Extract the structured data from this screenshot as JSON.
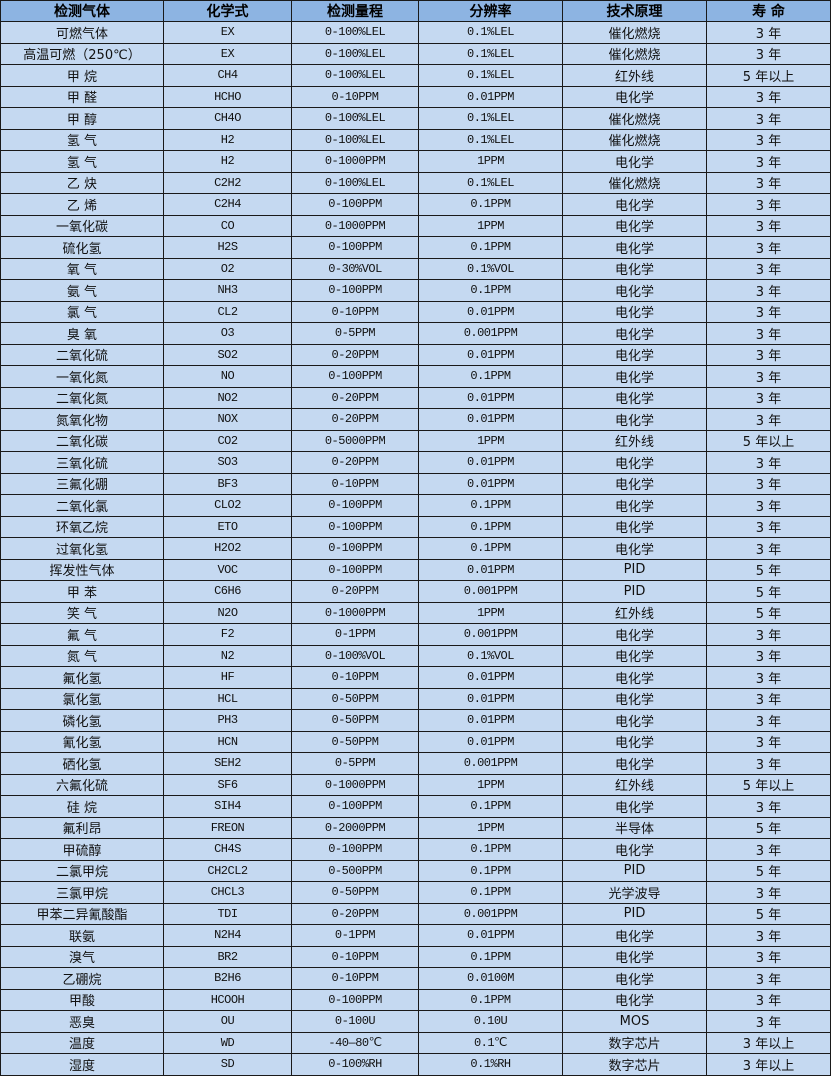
{
  "header_bg": "#8db4e2",
  "row_bg": "#c5d9f1",
  "columns": [
    "检测气体",
    "化学式",
    "检测量程",
    "分辨率",
    "技术原理",
    "寿 命"
  ],
  "rows": [
    [
      "可燃气体",
      "EX",
      "0-100%LEL",
      "0.1%LEL",
      "催化燃烧",
      "3 年"
    ],
    [
      "高温可燃（250℃）",
      "EX",
      "0-100%LEL",
      "0.1%LEL",
      "催化燃烧",
      "3 年"
    ],
    [
      "甲 烷",
      "CH4",
      "0-100%LEL",
      "0.1%LEL",
      "红外线",
      "5 年以上"
    ],
    [
      "甲 醛",
      "HCHO",
      "0-10PPM",
      "0.01PPM",
      "电化学",
      "3 年"
    ],
    [
      "甲 醇",
      "CH4O",
      "0-100%LEL",
      "0.1%LEL",
      "催化燃烧",
      "3 年"
    ],
    [
      "氢 气",
      "H2",
      "0-100%LEL",
      "0.1%LEL",
      "催化燃烧",
      "3 年"
    ],
    [
      "氢 气",
      "H2",
      "0-1000PPM",
      "1PPM",
      "电化学",
      "3 年"
    ],
    [
      "乙 炔",
      "C2H2",
      "0-100%LEL",
      "0.1%LEL",
      "催化燃烧",
      "3 年"
    ],
    [
      "乙 烯",
      "C2H4",
      "0-100PPM",
      "0.1PPM",
      "电化学",
      "3 年"
    ],
    [
      "一氧化碳",
      "CO",
      "0-1000PPM",
      "1PPM",
      "电化学",
      "3 年"
    ],
    [
      "硫化氢",
      "H2S",
      "0-100PPM",
      "0.1PPM",
      "电化学",
      "3 年"
    ],
    [
      "氧 气",
      "O2",
      "0-30%VOL",
      "0.1%VOL",
      "电化学",
      "3 年"
    ],
    [
      "氨 气",
      "NH3",
      "0-100PPM",
      "0.1PPM",
      "电化学",
      "3 年"
    ],
    [
      "氯 气",
      "CL2",
      "0-10PPM",
      "0.01PPM",
      "电化学",
      "3 年"
    ],
    [
      "臭 氧",
      "O3",
      "0-5PPM",
      "0.001PPM",
      "电化学",
      "3 年"
    ],
    [
      "二氧化硫",
      "SO2",
      "0-20PPM",
      "0.01PPM",
      "电化学",
      "3 年"
    ],
    [
      "一氧化氮",
      "NO",
      "0-100PPM",
      "0.1PPM",
      "电化学",
      "3 年"
    ],
    [
      "二氧化氮",
      "NO2",
      "0-20PPM",
      "0.01PPM",
      "电化学",
      "3 年"
    ],
    [
      "氮氧化物",
      "NOX",
      "0-20PPM",
      "0.01PPM",
      "电化学",
      "3 年"
    ],
    [
      "二氧化碳",
      "CO2",
      "0-5000PPM",
      "1PPM",
      "红外线",
      "5 年以上"
    ],
    [
      "三氧化硫",
      "SO3",
      "0-20PPM",
      "0.01PPM",
      "电化学",
      "3 年"
    ],
    [
      "三氟化硼",
      "BF3",
      "0-10PPM",
      "0.01PPM",
      "电化学",
      "3 年"
    ],
    [
      "二氧化氯",
      "CLO2",
      "0-100PPM",
      "0.1PPM",
      "电化学",
      "3 年"
    ],
    [
      "环氧乙烷",
      "ETO",
      "0-100PPM",
      "0.1PPM",
      "电化学",
      "3 年"
    ],
    [
      "过氧化氢",
      "H2O2",
      "0-100PPM",
      "0.1PPM",
      "电化学",
      "3 年"
    ],
    [
      "挥发性气体",
      "VOC",
      "0-100PPM",
      "0.01PPM",
      "PID",
      "5 年"
    ],
    [
      "甲 苯",
      "C6H6",
      "0-20PPM",
      "0.001PPM",
      "PID",
      "5 年"
    ],
    [
      "笑 气",
      "N2O",
      "0-1000PPM",
      "1PPM",
      "红外线",
      "5 年"
    ],
    [
      "氟 气",
      "F2",
      "0-1PPM",
      "0.001PPM",
      "电化学",
      "3 年"
    ],
    [
      "氮 气",
      "N2",
      "0-100%VOL",
      "0.1%VOL",
      "电化学",
      "3 年"
    ],
    [
      "氟化氢",
      "HF",
      "0-10PPM",
      "0.01PPM",
      "电化学",
      "3 年"
    ],
    [
      "氯化氢",
      "HCL",
      "0-50PPM",
      "0.01PPM",
      "电化学",
      "3 年"
    ],
    [
      "磷化氢",
      "PH3",
      "0-50PPM",
      "0.01PPM",
      "电化学",
      "3 年"
    ],
    [
      "氰化氢",
      "HCN",
      "0-50PPM",
      "0.01PPM",
      "电化学",
      "3 年"
    ],
    [
      "硒化氢",
      "SEH2",
      "0-5PPM",
      "0.001PPM",
      "电化学",
      "3 年"
    ],
    [
      "六氟化硫",
      "SF6",
      "0-1000PPM",
      "1PPM",
      "红外线",
      "5 年以上"
    ],
    [
      "硅 烷",
      "SIH4",
      "0-100PPM",
      "0.1PPM",
      "电化学",
      "3 年"
    ],
    [
      "氟利昂",
      "FREON",
      "0-2000PPM",
      "1PPM",
      "半导体",
      "5 年"
    ],
    [
      "甲硫醇",
      "CH4S",
      "0-100PPM",
      "0.1PPM",
      "电化学",
      "3 年"
    ],
    [
      "二氯甲烷",
      "CH2CL2",
      "0-500PPM",
      "0.1PPM",
      "PID",
      "5 年"
    ],
    [
      "三氯甲烷",
      "CHCL3",
      "0-50PPM",
      "0.1PPM",
      "光学波导",
      "3 年"
    ],
    [
      "甲苯二异氰酸酯",
      "TDI",
      "0-20PPM",
      "0.001PPM",
      "PID",
      "5 年"
    ],
    [
      "联氨",
      "N2H4",
      "0-1PPM",
      "0.01PPM",
      "电化学",
      "3 年"
    ],
    [
      "溴气",
      "BR2",
      "0-10PPM",
      "0.1PPM",
      "电化学",
      "3 年"
    ],
    [
      "乙硼烷",
      "B2H6",
      "0-10PPM",
      "0.0100M",
      "电化学",
      "3 年"
    ],
    [
      "甲酸",
      "HCOOH",
      "0-100PPM",
      "0.1PPM",
      "电化学",
      "3 年"
    ],
    [
      "恶臭",
      "OU",
      "0-100U",
      "0.10U",
      "MOS",
      "3 年"
    ],
    [
      "温度",
      "WD",
      "-40—80℃",
      "0.1℃",
      "数字芯片",
      "3 年以上"
    ],
    [
      "湿度",
      "SD",
      "0-100%RH",
      "0.1%RH",
      "数字芯片",
      "3 年以上"
    ]
  ]
}
